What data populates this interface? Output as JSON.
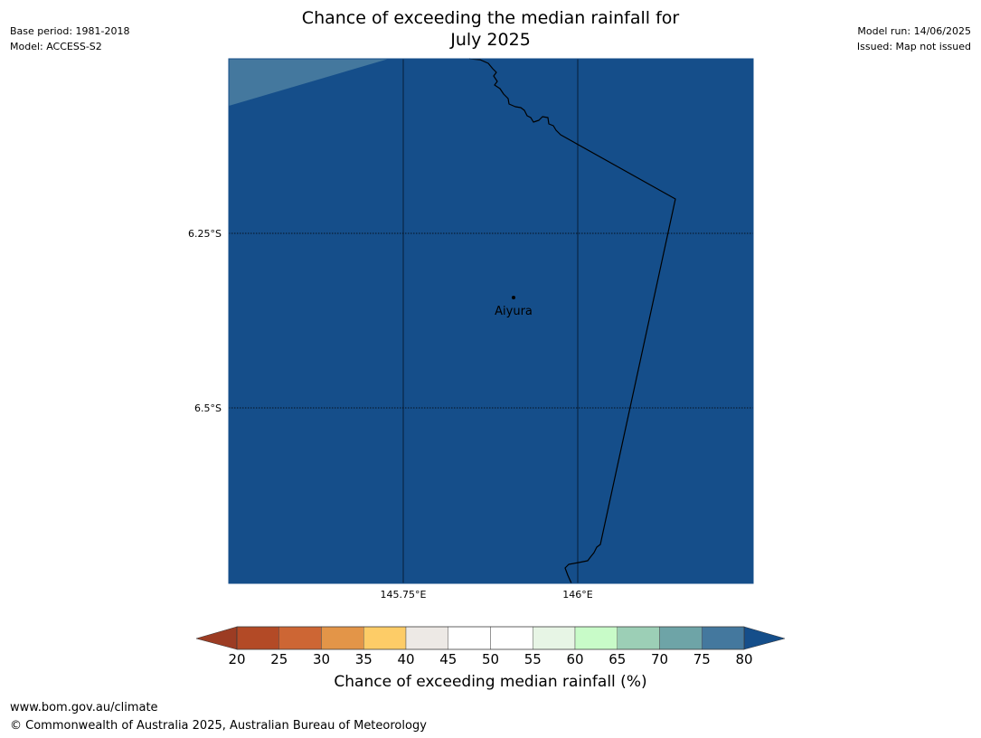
{
  "title_line1": "Chance of exceeding the median rainfall for",
  "title_line2": "July 2025",
  "meta_left": [
    "Base period: 1981-2018",
    "Model: ACCESS-S2"
  ],
  "meta_right": [
    "Model run: 14/06/2025",
    "Issued: Map not issued"
  ],
  "map": {
    "fill_color": "#154e8a",
    "corner_color": "#44789e",
    "lat_ticks": [
      "6.25°S",
      "6.5°S"
    ],
    "lon_ticks": [
      "145.75°E",
      "146°E"
    ],
    "place_name": "Aiyura"
  },
  "colorbar": {
    "title": "Chance of exceeding median rainfall (%)",
    "labels": [
      "20",
      "25",
      "30",
      "35",
      "40",
      "45",
      "50",
      "55",
      "60",
      "65",
      "70",
      "75",
      "80"
    ],
    "colors": [
      "#b34a26",
      "#cd6634",
      "#e39548",
      "#fdcc67",
      "#ede9e5",
      "#ffffff",
      "#ffffff",
      "#e7f5e5",
      "#c8fbc8",
      "#9ccfb6",
      "#6ea4a7",
      "#44789e"
    ],
    "under_color": "#9c3c23",
    "over_color": "#154e8a"
  },
  "footer": {
    "url": "www.bom.gov.au/climate",
    "copyright": "© Commonwealth of Australia 2025, Australian Bureau of Meteorology"
  }
}
